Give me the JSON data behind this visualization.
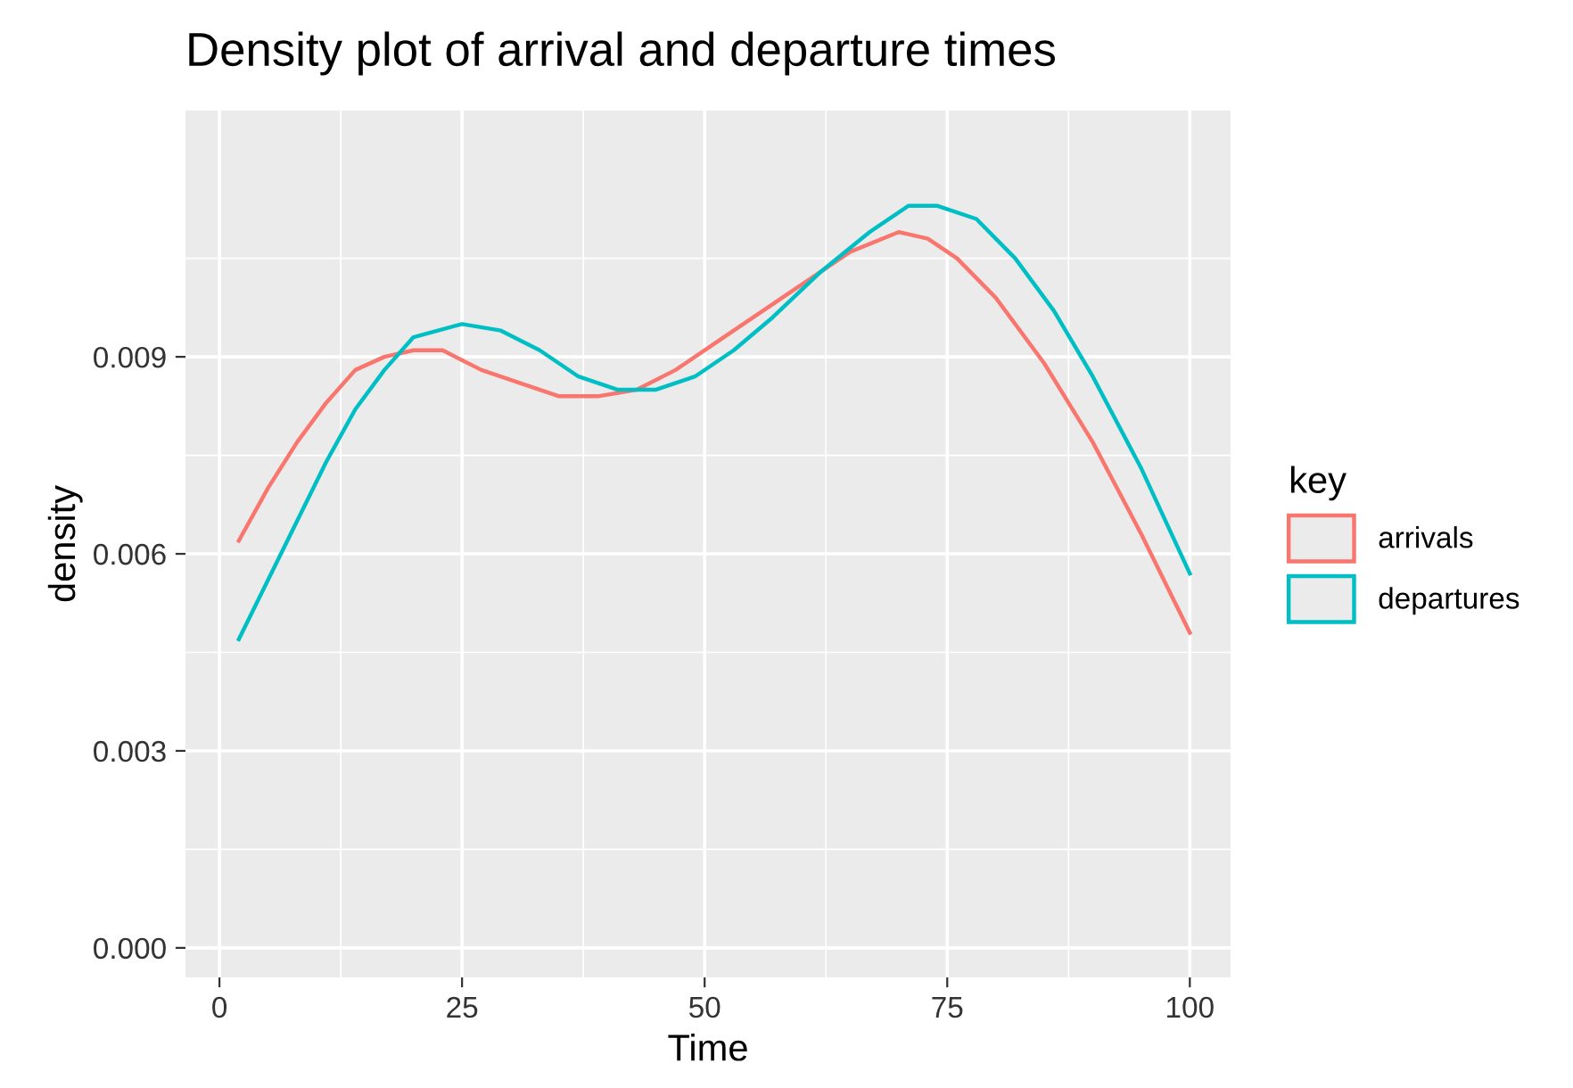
{
  "chart_data": {
    "type": "line",
    "title": "Density plot of arrival and departure times",
    "xlabel": "Time",
    "ylabel": "density",
    "legend_title": "key",
    "legend": "right",
    "grid": true,
    "xlim": [
      -3.5,
      104.2
    ],
    "ylim": [
      -0.00045,
      0.01275
    ],
    "xticks": [
      0,
      25,
      50,
      75,
      100
    ],
    "yticks": [
      {
        "value": 0,
        "label": "0.000"
      },
      {
        "value": 0.003,
        "label": "0.003"
      },
      {
        "value": 0.006,
        "label": "0.006"
      },
      {
        "value": 0.009,
        "label": "0.009"
      }
    ],
    "series": [
      {
        "name": "arrivals",
        "color": "#f8766d",
        "x": [
          2,
          5,
          8,
          11,
          14,
          17,
          20,
          23,
          27,
          31,
          35,
          39,
          43,
          47,
          51,
          55,
          60,
          65,
          70,
          73,
          76,
          80,
          85,
          90,
          95,
          100
        ],
        "values": [
          0.0062,
          0.007,
          0.0077,
          0.0083,
          0.0088,
          0.009,
          0.0091,
          0.0091,
          0.0088,
          0.0086,
          0.0084,
          0.0084,
          0.0085,
          0.0088,
          0.0092,
          0.0096,
          0.0101,
          0.0106,
          0.0109,
          0.0108,
          0.0105,
          0.0099,
          0.0089,
          0.0077,
          0.0063,
          0.0048
        ]
      },
      {
        "name": "departures",
        "color": "#00bfc4",
        "x": [
          2,
          5,
          8,
          11,
          14,
          17,
          20,
          25,
          29,
          33,
          37,
          41,
          45,
          49,
          53,
          57,
          62,
          67,
          71,
          74,
          78,
          82,
          86,
          90,
          95,
          100
        ],
        "values": [
          0.0047,
          0.0056,
          0.0065,
          0.0074,
          0.0082,
          0.0088,
          0.0093,
          0.0095,
          0.0094,
          0.0091,
          0.0087,
          0.0085,
          0.0085,
          0.0087,
          0.0091,
          0.0096,
          0.0103,
          0.0109,
          0.0113,
          0.0113,
          0.0111,
          0.0105,
          0.0097,
          0.0087,
          0.0073,
          0.0057
        ]
      }
    ]
  }
}
